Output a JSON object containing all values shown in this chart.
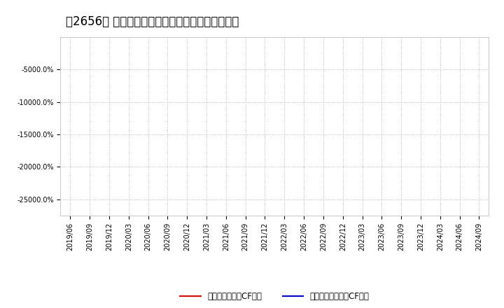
{
  "title": "［2656］ 有利子負債キャッシュフロー比率の推移",
  "series": [
    {
      "label": "有利子負債営業CF比率",
      "color": "#ff0000",
      "values": []
    },
    {
      "label": "有利子負債フリーCF比率",
      "color": "#0000ff",
      "values": []
    }
  ],
  "x_ticks": [
    "2019/06",
    "2019/09",
    "2019/12",
    "2020/03",
    "2020/06",
    "2020/09",
    "2020/12",
    "2021/03",
    "2021/06",
    "2021/09",
    "2021/12",
    "2022/03",
    "2022/06",
    "2022/09",
    "2022/12",
    "2023/03",
    "2023/06",
    "2023/09",
    "2023/12",
    "2024/03",
    "2024/06",
    "2024/09"
  ],
  "ylim": [
    -27500,
    0
  ],
  "yticks": [
    -25000,
    -20000,
    -15000,
    -10000,
    -5000
  ],
  "background_color": "#ffffff",
  "plot_bg_color": "#ffffff",
  "grid_color": "#b0b0b0",
  "title_fontsize": 12,
  "tick_fontsize": 7,
  "legend_fontsize": 8.5
}
